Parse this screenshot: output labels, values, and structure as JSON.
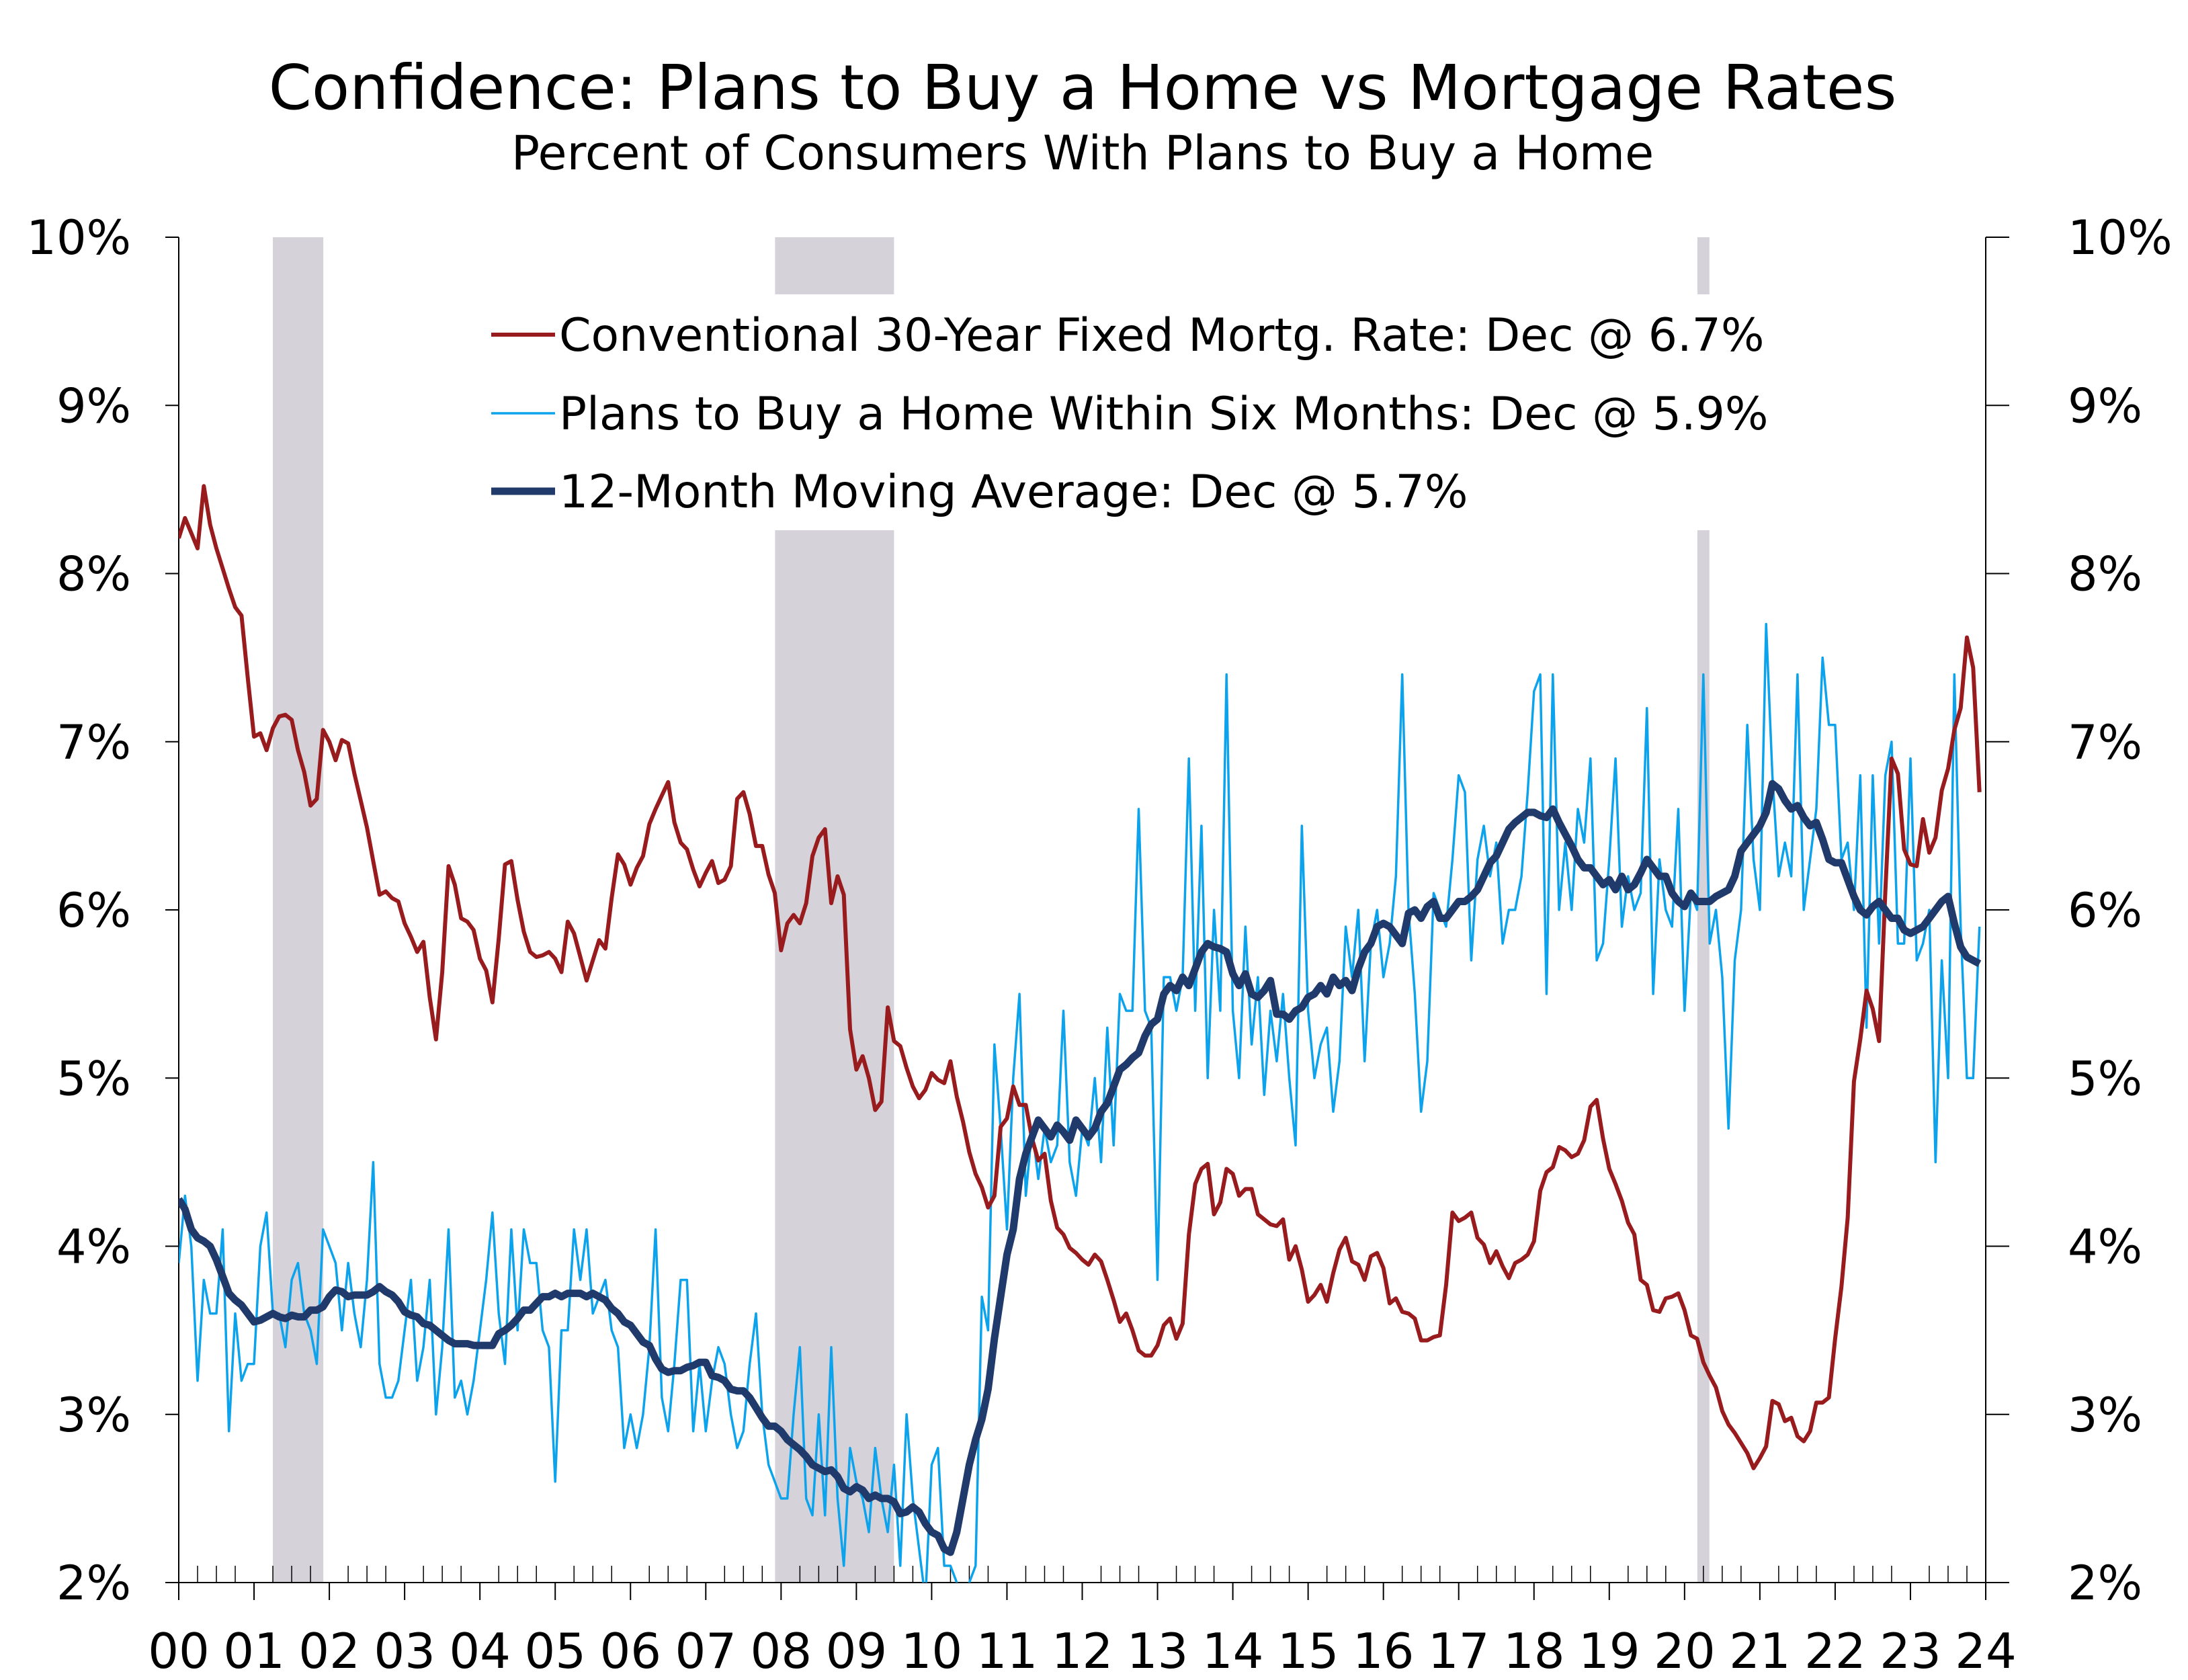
{
  "chart_data": {
    "type": "line",
    "title": "Confidence: Plans to Buy a Home vs Mortgage Rates",
    "subtitle": "Percent of Consumers With Plans to Buy a Home",
    "xlabel": "",
    "ylabel": "",
    "x_start_year": 2000,
    "frequency": "monthly",
    "xlim": [
      2000,
      2024
    ],
    "ylim": [
      2,
      10
    ],
    "y_ticks": [
      "2%",
      "3%",
      "4%",
      "5%",
      "6%",
      "7%",
      "8%",
      "9%",
      "10%"
    ],
    "y_tick_values": [
      2,
      3,
      4,
      5,
      6,
      7,
      8,
      9,
      10
    ],
    "x_ticks": [
      "00",
      "01",
      "02",
      "03",
      "04",
      "05",
      "06",
      "07",
      "08",
      "09",
      "10",
      "11",
      "12",
      "13",
      "14",
      "15",
      "16",
      "17",
      "18",
      "19",
      "20",
      "21",
      "22",
      "23",
      "24"
    ],
    "grid": false,
    "legend_position": "top-center",
    "recessions": [
      [
        2001.25,
        2001.92
      ],
      [
        2007.92,
        2009.5
      ],
      [
        2020.17,
        2020.33
      ]
    ],
    "colors": {
      "mortgage": "#981B1E",
      "plans": "#0CA3EC",
      "ma": "#1F3A6B",
      "recession": "#D6D2DA"
    },
    "series": [
      {
        "key": "mortgage",
        "name": "Conventional 30-Year Fixed Mortg. Rate: Dec @ 6.7%",
        "values": [
          8.21,
          8.33,
          8.24,
          8.15,
          8.52,
          8.29,
          8.15,
          8.03,
          7.91,
          7.8,
          7.75,
          7.38,
          7.03,
          7.05,
          6.95,
          7.08,
          7.15,
          7.16,
          7.13,
          6.95,
          6.82,
          6.62,
          6.66,
          7.07,
          7.0,
          6.89,
          7.01,
          6.99,
          6.81,
          6.65,
          6.49,
          6.29,
          6.09,
          6.11,
          6.07,
          6.05,
          5.92,
          5.84,
          5.75,
          5.81,
          5.48,
          5.23,
          5.63,
          6.26,
          6.15,
          5.95,
          5.93,
          5.88,
          5.71,
          5.64,
          5.45,
          5.83,
          6.27,
          6.29,
          6.06,
          5.87,
          5.75,
          5.72,
          5.73,
          5.75,
          5.71,
          5.63,
          5.93,
          5.86,
          5.72,
          5.58,
          5.7,
          5.82,
          5.77,
          6.07,
          6.33,
          6.27,
          6.15,
          6.25,
          6.32,
          6.51,
          6.6,
          6.68,
          6.76,
          6.52,
          6.4,
          6.36,
          6.24,
          6.14,
          6.22,
          6.29,
          6.16,
          6.18,
          6.26,
          6.66,
          6.7,
          6.57,
          6.38,
          6.38,
          6.21,
          6.1,
          5.76,
          5.92,
          5.97,
          5.92,
          6.04,
          6.32,
          6.43,
          6.48,
          6.04,
          6.2,
          6.09,
          5.29,
          5.05,
          5.13,
          5.0,
          4.81,
          4.86,
          5.42,
          5.22,
          5.19,
          5.06,
          4.95,
          4.88,
          4.93,
          5.03,
          4.99,
          4.97,
          5.1,
          4.89,
          4.74,
          4.56,
          4.43,
          4.35,
          4.23,
          4.3,
          4.71,
          4.76,
          4.95,
          4.84,
          4.84,
          4.64,
          4.51,
          4.55,
          4.27,
          4.11,
          4.07,
          3.99,
          3.96,
          3.92,
          3.89,
          3.95,
          3.91,
          3.8,
          3.68,
          3.55,
          3.6,
          3.5,
          3.38,
          3.35,
          3.35,
          3.41,
          3.53,
          3.57,
          3.45,
          3.54,
          4.07,
          4.37,
          4.46,
          4.49,
          4.19,
          4.26,
          4.46,
          4.43,
          4.3,
          4.34,
          4.34,
          4.19,
          4.16,
          4.13,
          4.12,
          4.16,
          3.92,
          4.0,
          3.86,
          3.67,
          3.71,
          3.77,
          3.67,
          3.84,
          3.98,
          4.05,
          3.91,
          3.89,
          3.8,
          3.94,
          3.96,
          3.87,
          3.66,
          3.69,
          3.61,
          3.6,
          3.57,
          3.44,
          3.44,
          3.46,
          3.47,
          3.77,
          4.2,
          4.15,
          4.17,
          4.2,
          4.05,
          4.01,
          3.9,
          3.97,
          3.88,
          3.81,
          3.9,
          3.92,
          3.95,
          4.03,
          4.33,
          4.44,
          4.47,
          4.59,
          4.57,
          4.53,
          4.55,
          4.63,
          4.83,
          4.87,
          4.64,
          4.46,
          4.37,
          4.27,
          4.14,
          4.07,
          3.8,
          3.77,
          3.62,
          3.61,
          3.69,
          3.7,
          3.72,
          3.62,
          3.47,
          3.45,
          3.31,
          3.23,
          3.16,
          3.02,
          2.94,
          2.89,
          2.83,
          2.77,
          2.68,
          2.74,
          2.81,
          3.08,
          3.06,
          2.96,
          2.98,
          2.87,
          2.84,
          2.9,
          3.07,
          3.07,
          3.1,
          3.45,
          3.76,
          4.17,
          4.98,
          5.23,
          5.52,
          5.41,
          5.22,
          6.11,
          6.9,
          6.81,
          6.36,
          6.27,
          6.26,
          6.54,
          6.34,
          6.43,
          6.71,
          6.84,
          7.07,
          7.2,
          7.62,
          7.44,
          6.7
        ]
      },
      {
        "key": "plans",
        "name": "Plans to Buy a Home Within Six Months: Dec @ 5.9%",
        "values": [
          3.9,
          4.3,
          4.0,
          3.2,
          3.8,
          3.6,
          3.6,
          4.1,
          2.9,
          3.6,
          3.2,
          3.3,
          3.3,
          4.0,
          4.2,
          3.6,
          3.6,
          3.4,
          3.8,
          3.9,
          3.6,
          3.5,
          3.3,
          4.1,
          4.0,
          3.9,
          3.5,
          3.9,
          3.6,
          3.4,
          3.8,
          4.5,
          3.3,
          3.1,
          3.1,
          3.2,
          3.5,
          3.8,
          3.2,
          3.4,
          3.8,
          3.0,
          3.4,
          4.1,
          3.1,
          3.2,
          3.0,
          3.2,
          3.5,
          3.8,
          4.2,
          3.6,
          3.3,
          4.1,
          3.5,
          4.1,
          3.9,
          3.9,
          3.5,
          3.4,
          2.6,
          3.5,
          3.5,
          4.1,
          3.8,
          4.1,
          3.6,
          3.7,
          3.8,
          3.5,
          3.4,
          2.8,
          3.0,
          2.8,
          3.0,
          3.4,
          4.1,
          3.1,
          2.9,
          3.3,
          3.8,
          3.8,
          2.9,
          3.3,
          2.9,
          3.2,
          3.4,
          3.3,
          3.0,
          2.8,
          2.9,
          3.3,
          3.6,
          3.0,
          2.7,
          2.6,
          2.5,
          2.5,
          3.0,
          3.4,
          2.5,
          2.4,
          3.0,
          2.4,
          3.4,
          2.5,
          2.1,
          2.8,
          2.6,
          2.5,
          2.3,
          2.8,
          2.5,
          2.3,
          2.7,
          2.1,
          3.0,
          2.5,
          2.2,
          1.9,
          2.7,
          2.8,
          2.1,
          2.1,
          2.0,
          1.9,
          2.0,
          2.1,
          3.7,
          3.5,
          5.2,
          4.7,
          4.1,
          5.0,
          5.5,
          4.3,
          4.7,
          4.4,
          4.7,
          4.5,
          4.6,
          5.4,
          4.5,
          4.3,
          4.7,
          4.6,
          5.0,
          4.5,
          5.3,
          4.6,
          5.5,
          5.4,
          5.4,
          6.6,
          5.4,
          5.3,
          3.8,
          5.6,
          5.6,
          5.4,
          5.6,
          6.9,
          5.4,
          6.5,
          5.0,
          6.0,
          5.4,
          7.4,
          5.4,
          5.0,
          5.9,
          5.2,
          5.6,
          4.9,
          5.4,
          5.1,
          5.5,
          5.0,
          4.6,
          6.5,
          5.4,
          5.0,
          5.2,
          5.3,
          4.8,
          5.1,
          5.9,
          5.6,
          6.0,
          5.1,
          5.8,
          6.0,
          5.6,
          5.8,
          6.2,
          7.4,
          6.0,
          5.5,
          4.8,
          5.1,
          6.1,
          6.0,
          5.9,
          6.3,
          6.8,
          6.7,
          5.7,
          6.3,
          6.5,
          6.2,
          6.4,
          5.8,
          6.0,
          6.0,
          6.2,
          6.7,
          7.3,
          7.4,
          5.5,
          7.4,
          6.0,
          6.4,
          6.0,
          6.6,
          6.4,
          6.9,
          5.7,
          5.8,
          6.3,
          6.9,
          5.9,
          6.2,
          6.0,
          6.1,
          7.2,
          5.5,
          6.3,
          6.0,
          5.9,
          6.6,
          5.4,
          6.1,
          6.0,
          7.4,
          5.8,
          6.0,
          5.6,
          4.7,
          5.7,
          6.0,
          7.1,
          6.3,
          6.0,
          7.7,
          6.8,
          6.2,
          6.4,
          6.2,
          7.4,
          6.0,
          6.3,
          6.6,
          7.5,
          7.1,
          7.1,
          6.3,
          6.4,
          6.0,
          6.8,
          5.3,
          6.8,
          5.8,
          6.8,
          7.0,
          5.8,
          5.8,
          6.9,
          5.7,
          5.8,
          6.0,
          4.5,
          5.7,
          5.0,
          7.4,
          5.9,
          5.0,
          5.0,
          5.9
        ]
      },
      {
        "key": "ma",
        "name": "12-Month Moving Average: Dec @ 5.7%",
        "values": [
          4.28,
          4.22,
          4.1,
          4.05,
          4.03,
          4.0,
          3.92,
          3.82,
          3.72,
          3.68,
          3.65,
          3.6,
          3.55,
          3.56,
          3.58,
          3.6,
          3.58,
          3.57,
          3.59,
          3.58,
          3.58,
          3.62,
          3.62,
          3.64,
          3.7,
          3.74,
          3.73,
          3.7,
          3.71,
          3.71,
          3.71,
          3.73,
          3.76,
          3.73,
          3.71,
          3.67,
          3.61,
          3.59,
          3.58,
          3.54,
          3.53,
          3.5,
          3.47,
          3.44,
          3.42,
          3.42,
          3.42,
          3.41,
          3.41,
          3.41,
          3.41,
          3.48,
          3.5,
          3.53,
          3.57,
          3.62,
          3.62,
          3.66,
          3.7,
          3.7,
          3.72,
          3.7,
          3.72,
          3.72,
          3.72,
          3.7,
          3.72,
          3.7,
          3.68,
          3.63,
          3.6,
          3.55,
          3.53,
          3.48,
          3.43,
          3.41,
          3.33,
          3.27,
          3.25,
          3.26,
          3.26,
          3.28,
          3.29,
          3.31,
          3.31,
          3.23,
          3.22,
          3.2,
          3.15,
          3.14,
          3.14,
          3.1,
          3.04,
          2.98,
          2.93,
          2.93,
          2.9,
          2.85,
          2.82,
          2.79,
          2.75,
          2.7,
          2.68,
          2.66,
          2.67,
          2.63,
          2.56,
          2.54,
          2.57,
          2.55,
          2.5,
          2.52,
          2.5,
          2.5,
          2.48,
          2.41,
          2.42,
          2.45,
          2.42,
          2.35,
          2.3,
          2.28,
          2.2,
          2.18,
          2.3,
          2.5,
          2.7,
          2.85,
          2.97,
          3.15,
          3.45,
          3.7,
          3.95,
          4.1,
          4.4,
          4.55,
          4.65,
          4.75,
          4.7,
          4.65,
          4.72,
          4.68,
          4.63,
          4.75,
          4.7,
          4.65,
          4.7,
          4.8,
          4.85,
          4.95,
          5.05,
          5.08,
          5.12,
          5.15,
          5.25,
          5.32,
          5.35,
          5.5,
          5.55,
          5.52,
          5.6,
          5.55,
          5.65,
          5.75,
          5.8,
          5.78,
          5.77,
          5.75,
          5.62,
          5.55,
          5.62,
          5.5,
          5.48,
          5.52,
          5.58,
          5.38,
          5.38,
          5.35,
          5.4,
          5.42,
          5.48,
          5.5,
          5.55,
          5.5,
          5.6,
          5.55,
          5.58,
          5.52,
          5.65,
          5.75,
          5.8,
          5.9,
          5.92,
          5.9,
          5.85,
          5.8,
          5.98,
          6.0,
          5.95,
          6.02,
          6.05,
          5.95,
          5.95,
          6.0,
          6.05,
          6.05,
          6.08,
          6.12,
          6.2,
          6.28,
          6.32,
          6.4,
          6.48,
          6.52,
          6.55,
          6.58,
          6.58,
          6.56,
          6.55,
          6.6,
          6.52,
          6.45,
          6.38,
          6.3,
          6.25,
          6.25,
          6.2,
          6.15,
          6.18,
          6.12,
          6.2,
          6.12,
          6.15,
          6.22,
          6.3,
          6.25,
          6.2,
          6.2,
          6.1,
          6.05,
          6.02,
          6.1,
          6.05,
          6.05,
          6.05,
          6.08,
          6.1,
          6.12,
          6.2,
          6.35,
          6.4,
          6.45,
          6.5,
          6.58,
          6.75,
          6.72,
          6.65,
          6.6,
          6.62,
          6.55,
          6.5,
          6.52,
          6.42,
          6.3,
          6.28,
          6.28,
          6.18,
          6.08,
          6.0,
          5.97,
          6.02,
          6.05,
          6.0,
          5.95,
          5.95,
          5.88,
          5.86,
          5.88,
          5.9,
          5.95,
          6.0,
          6.05,
          6.08,
          5.92,
          5.78,
          5.72,
          5.7,
          5.68
        ]
      }
    ]
  }
}
